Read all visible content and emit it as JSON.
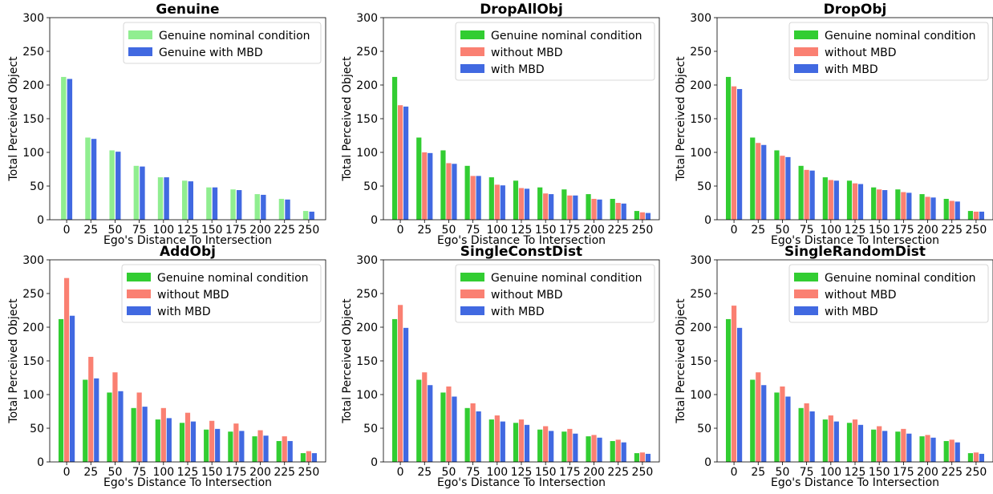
{
  "chart_data": [
    {
      "type": "bar",
      "title": "Genuine",
      "xlabel": "Ego's Distance To Intersection",
      "ylabel": "Total Perceived Object",
      "ylim": [
        0,
        300
      ],
      "yticks": [
        "0",
        "50",
        "100",
        "150",
        "200",
        "250",
        "300"
      ],
      "categories": [
        "0",
        "25",
        "50",
        "75",
        "100",
        "125",
        "150",
        "175",
        "200",
        "225",
        "250"
      ],
      "legend_position": "top-right",
      "series": [
        {
          "name": "Genuine nominal condition",
          "color": "#90ee90",
          "values": [
            212,
            122,
            103,
            80,
            63,
            58,
            48,
            45,
            38,
            31,
            13
          ]
        },
        {
          "name": "Genuine with MBD",
          "color": "#4169e1",
          "values": [
            209,
            120,
            101,
            79,
            63,
            57,
            48,
            44,
            37,
            30,
            12
          ]
        }
      ]
    },
    {
      "type": "bar",
      "title": "DropAllObj",
      "xlabel": "Ego's Distance To Intersection",
      "ylabel": "Total Perceived Object",
      "ylim": [
        0,
        300
      ],
      "yticks": [
        "0",
        "50",
        "100",
        "150",
        "200",
        "250",
        "300"
      ],
      "categories": [
        "0",
        "25",
        "50",
        "75",
        "100",
        "125",
        "150",
        "175",
        "200",
        "225",
        "250"
      ],
      "legend_position": "top-right",
      "series": [
        {
          "name": "Genuine nominal condition",
          "color": "#32cd32",
          "values": [
            212,
            122,
            103,
            80,
            63,
            58,
            48,
            45,
            38,
            31,
            13
          ]
        },
        {
          "name": "without MBD",
          "color": "#fa8072",
          "values": [
            170,
            100,
            84,
            65,
            52,
            47,
            39,
            36,
            31,
            25,
            11
          ]
        },
        {
          "name": "with MBD",
          "color": "#4169e1",
          "values": [
            168,
            99,
            83,
            65,
            51,
            46,
            38,
            36,
            30,
            24,
            10
          ]
        }
      ]
    },
    {
      "type": "bar",
      "title": "DropObj",
      "xlabel": "Ego's Distance To Intersection",
      "ylabel": "Total Perceived Object",
      "ylim": [
        0,
        300
      ],
      "yticks": [
        "0",
        "50",
        "100",
        "150",
        "200",
        "250",
        "300"
      ],
      "categories": [
        "0",
        "25",
        "50",
        "75",
        "100",
        "125",
        "150",
        "175",
        "200",
        "225",
        "250"
      ],
      "legend_position": "top-right",
      "series": [
        {
          "name": "Genuine nominal condition",
          "color": "#32cd32",
          "values": [
            212,
            122,
            103,
            80,
            63,
            58,
            48,
            45,
            38,
            31,
            13
          ]
        },
        {
          "name": "without MBD",
          "color": "#fa8072",
          "values": [
            198,
            114,
            95,
            74,
            59,
            54,
            45,
            41,
            34,
            28,
            12
          ]
        },
        {
          "name": "with MBD",
          "color": "#4169e1",
          "values": [
            194,
            111,
            93,
            73,
            58,
            53,
            44,
            40,
            33,
            27,
            12
          ]
        }
      ]
    },
    {
      "type": "bar",
      "title": "AddObj",
      "xlabel": "Ego's Distance To Intersection",
      "ylabel": "Total Perceived Object",
      "ylim": [
        0,
        300
      ],
      "yticks": [
        "0",
        "50",
        "100",
        "150",
        "200",
        "250",
        "300"
      ],
      "categories": [
        "0",
        "25",
        "50",
        "75",
        "100",
        "125",
        "150",
        "175",
        "200",
        "225",
        "250"
      ],
      "legend_position": "top-right",
      "series": [
        {
          "name": "Genuine nominal condition",
          "color": "#32cd32",
          "values": [
            212,
            122,
            103,
            80,
            63,
            58,
            48,
            45,
            38,
            31,
            13
          ]
        },
        {
          "name": "without MBD",
          "color": "#fa8072",
          "values": [
            273,
            156,
            133,
            103,
            80,
            73,
            61,
            57,
            47,
            38,
            16
          ]
        },
        {
          "name": "with MBD",
          "color": "#4169e1",
          "values": [
            217,
            124,
            105,
            82,
            65,
            60,
            49,
            46,
            39,
            31,
            13
          ]
        }
      ]
    },
    {
      "type": "bar",
      "title": "SingleConstDist",
      "xlabel": "Ego's Distance To Intersection",
      "ylabel": "Total Perceived Object",
      "ylim": [
        0,
        300
      ],
      "yticks": [
        "0",
        "50",
        "100",
        "150",
        "200",
        "250",
        "300"
      ],
      "categories": [
        "0",
        "25",
        "50",
        "75",
        "100",
        "125",
        "150",
        "175",
        "200",
        "225",
        "250"
      ],
      "legend_position": "top-right",
      "series": [
        {
          "name": "Genuine nominal condition",
          "color": "#32cd32",
          "values": [
            212,
            122,
            103,
            80,
            63,
            58,
            48,
            45,
            38,
            31,
            13
          ]
        },
        {
          "name": "without MBD",
          "color": "#fa8072",
          "values": [
            233,
            133,
            112,
            87,
            69,
            63,
            53,
            49,
            40,
            33,
            14
          ]
        },
        {
          "name": "with MBD",
          "color": "#4169e1",
          "values": [
            199,
            114,
            97,
            75,
            60,
            55,
            46,
            42,
            36,
            29,
            12
          ]
        }
      ]
    },
    {
      "type": "bar",
      "title": "SingleRandomDist",
      "xlabel": "Ego's Distance To Intersection",
      "ylabel": "Total Perceived Object",
      "ylim": [
        0,
        300
      ],
      "yticks": [
        "0",
        "50",
        "100",
        "150",
        "200",
        "250",
        "300"
      ],
      "categories": [
        "0",
        "25",
        "50",
        "75",
        "100",
        "125",
        "150",
        "175",
        "200",
        "225",
        "250"
      ],
      "legend_position": "top-right",
      "series": [
        {
          "name": "Genuine nominal condition",
          "color": "#32cd32",
          "values": [
            212,
            122,
            103,
            80,
            63,
            58,
            48,
            45,
            38,
            31,
            13
          ]
        },
        {
          "name": "without MBD",
          "color": "#fa8072",
          "values": [
            232,
            133,
            112,
            87,
            69,
            63,
            53,
            49,
            40,
            33,
            14
          ]
        },
        {
          "name": "with MBD",
          "color": "#4169e1",
          "values": [
            199,
            114,
            97,
            75,
            60,
            55,
            46,
            42,
            36,
            29,
            12
          ]
        }
      ]
    }
  ]
}
